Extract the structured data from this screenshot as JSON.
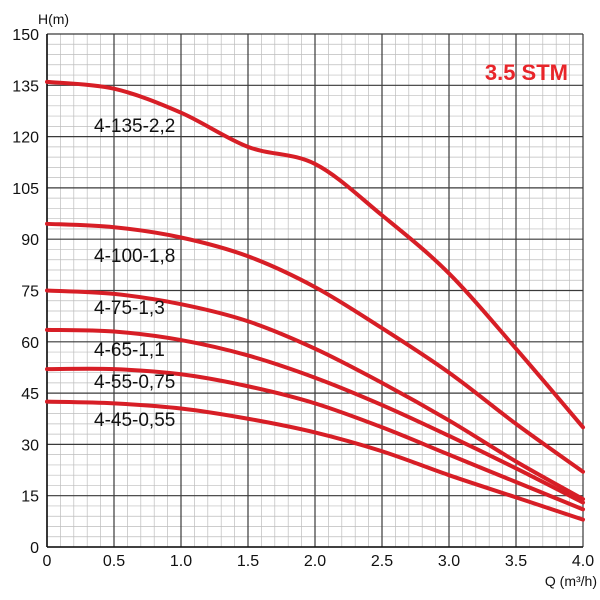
{
  "chart_data": {
    "type": "line",
    "title": "3.5 STM",
    "title_color": "#e8252a",
    "curve_color": "#d71e26",
    "grid_color": "#9a9a9a",
    "xlabel": "Q (m³/h)",
    "ylabel": "H(m)",
    "xlim": [
      0,
      4.0
    ],
    "ylim": [
      0,
      150
    ],
    "x_ticks": [
      0,
      0.5,
      1.0,
      1.5,
      2.0,
      2.5,
      3.0,
      3.5,
      4.0
    ],
    "x_tick_labels": [
      "0",
      "0.5",
      "1.0",
      "1.5",
      "2.0",
      "2.5",
      "3.0",
      "3.5",
      "4.0"
    ],
    "y_ticks": [
      0,
      15,
      30,
      45,
      60,
      75,
      90,
      105,
      120,
      135,
      150
    ],
    "y_tick_labels": [
      "0",
      "15",
      "30",
      "45",
      "60",
      "75",
      "90",
      "105",
      "120",
      "135",
      "150"
    ],
    "minor_x_step": 0.1,
    "minor_y_step": 3,
    "grid": true,
    "series": [
      {
        "name": "4-135-2,2",
        "x": [
          0,
          0.5,
          1.0,
          1.5,
          2.0,
          2.5,
          3.0,
          3.5,
          4.0
        ],
        "y": [
          136,
          134,
          127,
          117,
          112,
          97,
          80,
          58,
          35
        ]
      },
      {
        "name": "4-100-1,8",
        "x": [
          0,
          0.5,
          1.0,
          1.5,
          2.0,
          2.5,
          3.0,
          3.5,
          4.0
        ],
        "y": [
          94.5,
          93.5,
          90.5,
          85,
          76,
          64,
          51,
          36,
          22
        ]
      },
      {
        "name": "4-75-1,3",
        "x": [
          0,
          0.5,
          1.0,
          1.5,
          2.0,
          2.5,
          3.0,
          3.5,
          4.0
        ],
        "y": [
          75,
          74,
          71,
          66,
          58,
          48,
          37,
          25,
          14
        ]
      },
      {
        "name": "4-65-1,1",
        "x": [
          0,
          0.5,
          1.0,
          1.5,
          2.0,
          2.5,
          3.0,
          3.5,
          4.0
        ],
        "y": [
          63.5,
          63,
          60.5,
          56,
          49.5,
          41.5,
          32.5,
          23,
          13
        ]
      },
      {
        "name": "4-55-0,75",
        "x": [
          0,
          0.5,
          1.0,
          1.5,
          2.0,
          2.5,
          3.0,
          3.5,
          4.0
        ],
        "y": [
          52,
          52,
          50.5,
          47,
          42,
          35,
          27,
          19,
          11
        ]
      },
      {
        "name": "4-45-0,55",
        "x": [
          0,
          0.5,
          1.0,
          1.5,
          2.0,
          2.5,
          3.0,
          3.5,
          4.0
        ],
        "y": [
          42.5,
          42,
          40.5,
          37.5,
          33.5,
          28,
          21,
          14.5,
          8
        ]
      }
    ]
  }
}
